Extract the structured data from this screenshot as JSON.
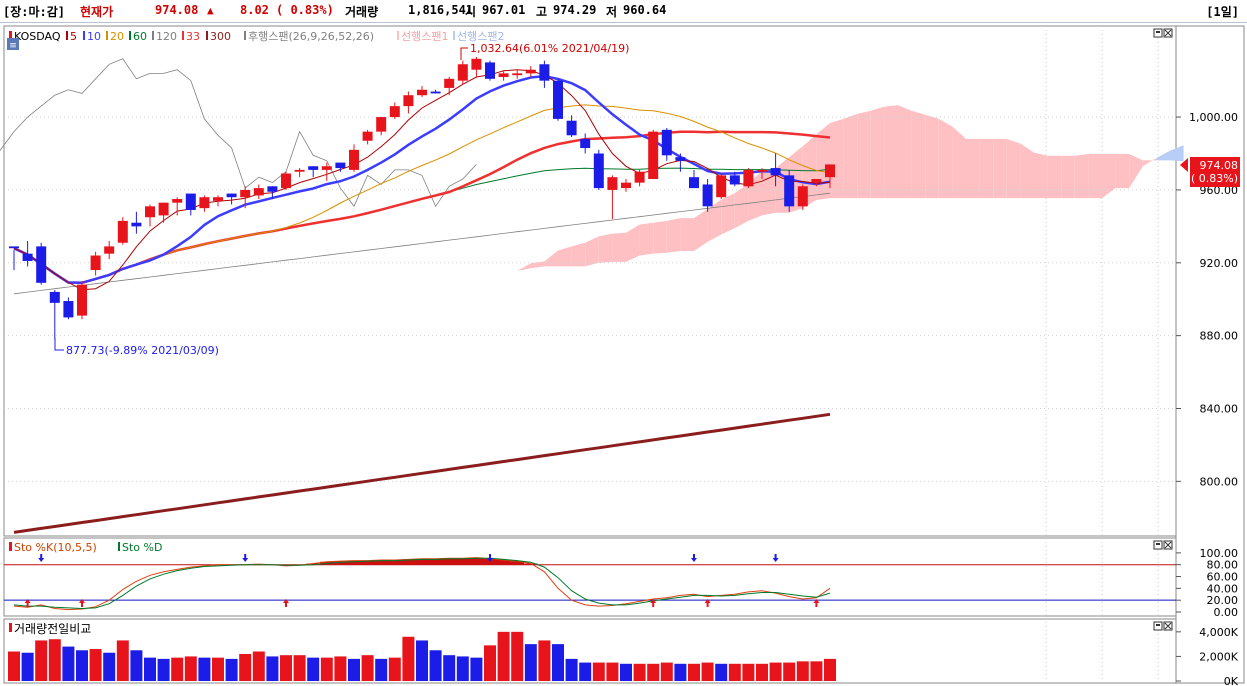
{
  "header": {
    "mode": "[장:마:감]",
    "current_label": "현재가",
    "current_value": "974.08",
    "change_symbol": "▲",
    "change": "8.02",
    "change_pct": "( 0.83%)",
    "volume_label": "거래량",
    "volume": "1,816,541",
    "open_label": "시",
    "open": "967.01",
    "high_label": "고",
    "high": "974.29",
    "low_label": "저",
    "low": "960.64",
    "period": "[1일]"
  },
  "legend": {
    "symbol": "KOSDAQ",
    "ma": [
      "5",
      "10",
      "20",
      "60",
      "120",
      "33",
      "300"
    ],
    "ichimoku": [
      "후행스팬(26,9,26,52,26)",
      "선행스팬1",
      "선행스팬2"
    ]
  },
  "colors": {
    "up": "#e8141c",
    "down": "#1c1ce8",
    "ma5": "#b00000",
    "ma10": "#3c3cff",
    "ma20": "#d89000",
    "ma60": "#007a2a",
    "ma120": "#808080",
    "ma33": "#ee3030",
    "ma300": "#8b1d1d",
    "cloud_bull": "#ffc0c4",
    "cloud_bear": "#b8cef6",
    "lagging": "#808080"
  },
  "annotations": {
    "high": "1,032.64(6.01% 2021/04/19)",
    "low": "877.73(-9.89% 2021/03/09)",
    "price_tag": "974.08",
    "price_tag_pct": "( 0.83%)"
  },
  "chart_data": [
    {
      "type": "candlestick",
      "ylim": [
        770,
        1050
      ],
      "y_ticks": [
        "1,000.00",
        "960.00",
        "920.00",
        "880.00",
        "840.00",
        "800.00"
      ],
      "candles": [
        [
          929,
          927,
          916,
          928
        ],
        [
          925,
          932,
          918,
          921
        ],
        [
          929,
          931,
          908,
          909
        ],
        [
          904,
          905,
          878,
          898
        ],
        [
          899,
          901,
          889,
          890
        ],
        [
          891,
          910,
          889,
          908
        ],
        [
          916,
          926,
          913,
          924
        ],
        [
          925,
          932,
          922,
          929
        ],
        [
          931,
          945,
          930,
          943
        ],
        [
          942,
          948,
          936,
          940
        ],
        [
          945,
          952,
          940,
          951
        ],
        [
          946,
          953,
          942,
          953
        ],
        [
          953,
          956,
          946,
          955
        ],
        [
          958,
          958,
          946,
          949
        ],
        [
          950,
          957,
          948,
          956
        ],
        [
          954,
          957,
          951,
          956
        ],
        [
          958,
          958,
          952,
          956
        ],
        [
          956,
          962,
          950,
          960
        ],
        [
          957,
          963,
          955,
          961
        ],
        [
          962,
          962,
          955,
          959
        ],
        [
          961,
          970,
          960,
          969
        ],
        [
          970,
          972,
          967,
          971
        ],
        [
          973,
          973,
          967,
          971
        ],
        [
          971,
          975,
          965,
          973
        ],
        [
          975,
          975,
          970,
          972
        ],
        [
          971,
          985,
          970,
          982
        ],
        [
          987,
          993,
          985,
          992
        ],
        [
          992,
          1000,
          990,
          1000
        ],
        [
          1000,
          1008,
          999,
          1006
        ],
        [
          1006,
          1014,
          1002,
          1012
        ],
        [
          1012,
          1017,
          1011,
          1015
        ],
        [
          1014,
          1015,
          1013,
          1013
        ],
        [
          1016,
          1022,
          1012,
          1021
        ],
        [
          1020,
          1031,
          1018,
          1029
        ],
        [
          1026,
          1033,
          1022,
          1032
        ],
        [
          1030,
          1031,
          1020,
          1021
        ],
        [
          1022,
          1025,
          1020,
          1024
        ],
        [
          1023,
          1026,
          1021,
          1024
        ],
        [
          1024,
          1028,
          1022,
          1026
        ],
        [
          1029,
          1031,
          1016,
          1020
        ],
        [
          1020,
          1021,
          998,
          999
        ],
        [
          998,
          1001,
          989,
          990
        ],
        [
          988,
          991,
          980,
          983
        ],
        [
          980,
          982,
          960,
          961
        ],
        [
          960,
          968,
          944,
          967
        ],
        [
          961,
          966,
          959,
          964
        ],
        [
          964,
          971,
          962,
          970
        ],
        [
          966,
          993,
          967,
          992
        ],
        [
          993,
          994,
          976,
          979
        ],
        [
          978,
          980,
          970,
          976
        ],
        [
          967,
          971,
          961,
          961
        ],
        [
          963,
          966,
          948,
          951
        ],
        [
          956,
          969,
          955,
          968
        ],
        [
          968,
          970,
          962,
          963
        ],
        [
          962,
          972,
          961,
          971
        ],
        [
          970,
          972,
          966,
          971
        ],
        [
          972,
          980,
          962,
          968
        ],
        [
          968,
          971,
          948,
          951
        ],
        [
          951,
          963,
          949,
          962
        ],
        [
          964,
          966,
          962,
          966
        ],
        [
          967,
          974,
          961,
          974
        ]
      ]
    },
    {
      "type": "line",
      "title": "Sto %K(10,5,5) / Sto %D",
      "ylim": [
        0,
        115
      ],
      "y_ticks": [
        "100.00",
        "80.00",
        "60.00",
        "40.00",
        "20.00",
        "0.00"
      ],
      "levels": [
        80,
        20
      ],
      "series": [
        {
          "name": "Sto %K(10,5,5)",
          "values": [
            10,
            8,
            12,
            6,
            4,
            5,
            9,
            20,
            38,
            52,
            62,
            68,
            72,
            76,
            78,
            80,
            80,
            80,
            81,
            80,
            78,
            79,
            82,
            85,
            86,
            87,
            87,
            88,
            88,
            89,
            90,
            90,
            91,
            91,
            92,
            90,
            88,
            86,
            82,
            68,
            40,
            20,
            12,
            10,
            11,
            14,
            18,
            22,
            24,
            28,
            30,
            26,
            28,
            30,
            34,
            36,
            32,
            26,
            22,
            24,
            40
          ]
        },
        {
          "name": "Sto %D",
          "values": [
            12,
            10,
            10,
            8,
            7,
            6,
            7,
            14,
            28,
            44,
            56,
            64,
            70,
            74,
            77,
            78,
            79,
            80,
            80,
            80,
            79,
            79,
            80,
            82,
            84,
            85,
            86,
            87,
            87,
            88,
            89,
            89,
            90,
            90,
            91,
            91,
            89,
            87,
            84,
            76,
            58,
            36,
            22,
            15,
            12,
            12,
            15,
            19,
            22,
            25,
            28,
            28,
            27,
            28,
            31,
            33,
            33,
            30,
            27,
            25,
            32
          ]
        }
      ]
    },
    {
      "type": "bar",
      "title": "거래량전일비교",
      "ylim": [
        0,
        4800
      ],
      "y_ticks": [
        "4,000K",
        "2,000K",
        "0K"
      ],
      "series": [
        {
          "name": "거래량",
          "values": [
            2400,
            2300,
            3300,
            3400,
            2800,
            2500,
            2600,
            2300,
            3300,
            2500,
            1900,
            1800,
            1900,
            2000,
            1900,
            1900,
            1800,
            2200,
            2400,
            2000,
            2100,
            2100,
            1900,
            1900,
            2000,
            1800,
            2100,
            1800,
            1900,
            3600,
            3300,
            2500,
            2100,
            2000,
            1900,
            2900,
            4000,
            4000,
            3000,
            3300,
            3000,
            1800,
            1500,
            1500,
            1500,
            1400,
            1400,
            1400,
            1500,
            1400,
            1400,
            1500,
            1400,
            1400,
            1400,
            1400,
            1500,
            1500,
            1600,
            1600,
            1800
          ]
        }
      ]
    }
  ]
}
